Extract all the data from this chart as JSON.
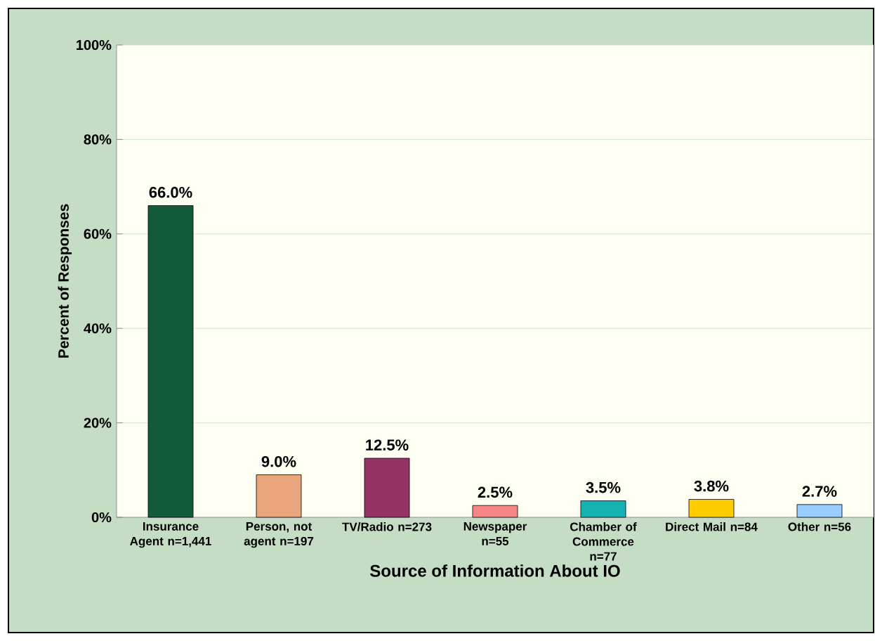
{
  "chart_data": {
    "type": "bar",
    "xlabel": "Source of Information About IO",
    "ylabel": "Percent of Responses",
    "categories": [
      "Insurance Agent n=1,441",
      "Person, not agent n=197",
      "TV/Radio n=273",
      "Newspaper n=55",
      "Chamber of Commerce n=77",
      "Direct Mail n=84",
      "Other n=56"
    ],
    "values": [
      66.0,
      9.0,
      12.5,
      2.5,
      3.5,
      3.8,
      2.7
    ],
    "value_labels": [
      "66.0%",
      "9.0%",
      "12.5%",
      "2.5%",
      "3.5%",
      "3.8%",
      "2.7%"
    ],
    "colors": [
      "#135a3a",
      "#e8a57c",
      "#953364",
      "#f98686",
      "#15b2b2",
      "#ffcc00",
      "#99ccff"
    ],
    "ylim": [
      0,
      100
    ],
    "yticks": [
      {
        "value": 0,
        "label": "0%"
      },
      {
        "value": 20,
        "label": "20%"
      },
      {
        "value": 40,
        "label": "40%"
      },
      {
        "value": 60,
        "label": "60%"
      },
      {
        "value": 80,
        "label": "80%"
      },
      {
        "value": 100,
        "label": "100%"
      }
    ],
    "grid": "y"
  }
}
